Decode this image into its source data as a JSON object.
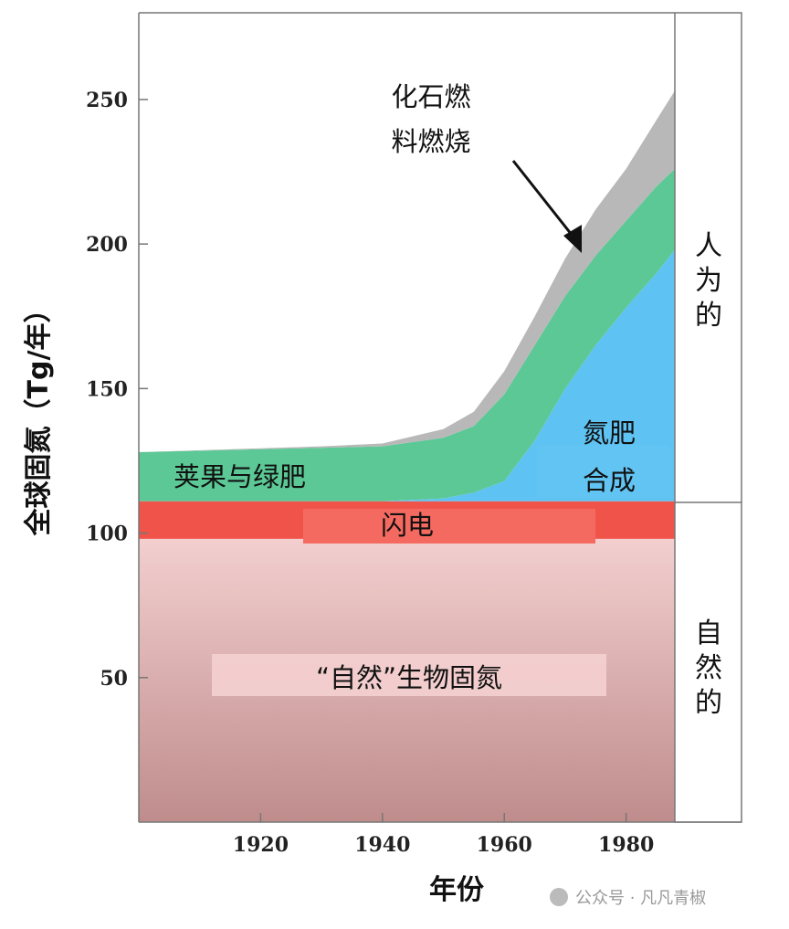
{
  "chart_data": {
    "type": "area",
    "title": "",
    "xlabel": "年份",
    "ylabel": "全球固氮（Tg/年）",
    "xlim": [
      1900,
      1988
    ],
    "ylim": [
      0,
      280
    ],
    "x_ticks": [
      1920,
      1940,
      1960,
      1980
    ],
    "y_ticks": [
      50,
      100,
      150,
      200,
      250
    ],
    "stacked": true,
    "series": [
      {
        "name": "“自然”生物固氮",
        "color": "#c99a9a",
        "points": [
          [
            1900,
            98
          ],
          [
            1988,
            98
          ]
        ]
      },
      {
        "name": "闪电",
        "color": "#f0534a",
        "points": [
          [
            1900,
            111
          ],
          [
            1988,
            111
          ]
        ]
      },
      {
        "name": "氮肥合成",
        "color": "#5ec2f2",
        "points": [
          [
            1900,
            111
          ],
          [
            1940,
            111
          ],
          [
            1950,
            112
          ],
          [
            1955,
            114
          ],
          [
            1960,
            118
          ],
          [
            1965,
            132
          ],
          [
            1970,
            150
          ],
          [
            1975,
            165
          ],
          [
            1980,
            178
          ],
          [
            1985,
            190
          ],
          [
            1988,
            198
          ]
        ]
      },
      {
        "name": "荚果与绿肥",
        "color": "#5cc896",
        "points": [
          [
            1900,
            128
          ],
          [
            1920,
            129
          ],
          [
            1940,
            130
          ],
          [
            1950,
            133
          ],
          [
            1955,
            137
          ],
          [
            1960,
            148
          ],
          [
            1965,
            165
          ],
          [
            1970,
            182
          ],
          [
            1975,
            196
          ],
          [
            1980,
            208
          ],
          [
            1985,
            220
          ],
          [
            1988,
            226
          ]
        ]
      },
      {
        "name": "化石燃料燃烧",
        "color": "#b8b8b8",
        "points": [
          [
            1900,
            128
          ],
          [
            1930,
            130
          ],
          [
            1940,
            131
          ],
          [
            1950,
            136
          ],
          [
            1955,
            142
          ],
          [
            1960,
            156
          ],
          [
            1965,
            175
          ],
          [
            1970,
            195
          ],
          [
            1975,
            212
          ],
          [
            1980,
            226
          ],
          [
            1985,
            243
          ],
          [
            1988,
            253
          ]
        ]
      }
    ],
    "annotations": {
      "fossil_l1": "化石燃",
      "fossil_l2": "料燃烧",
      "legume": "荚果与绿肥",
      "fert_l1": "氮肥",
      "fert_l2": "合成",
      "lightning": "闪电",
      "natural": "“自然”生物固氮"
    },
    "side_labels": {
      "anthropogenic": "人为的",
      "natural": "自然的"
    }
  },
  "watermark": "公众号 · 凡凡青椒"
}
